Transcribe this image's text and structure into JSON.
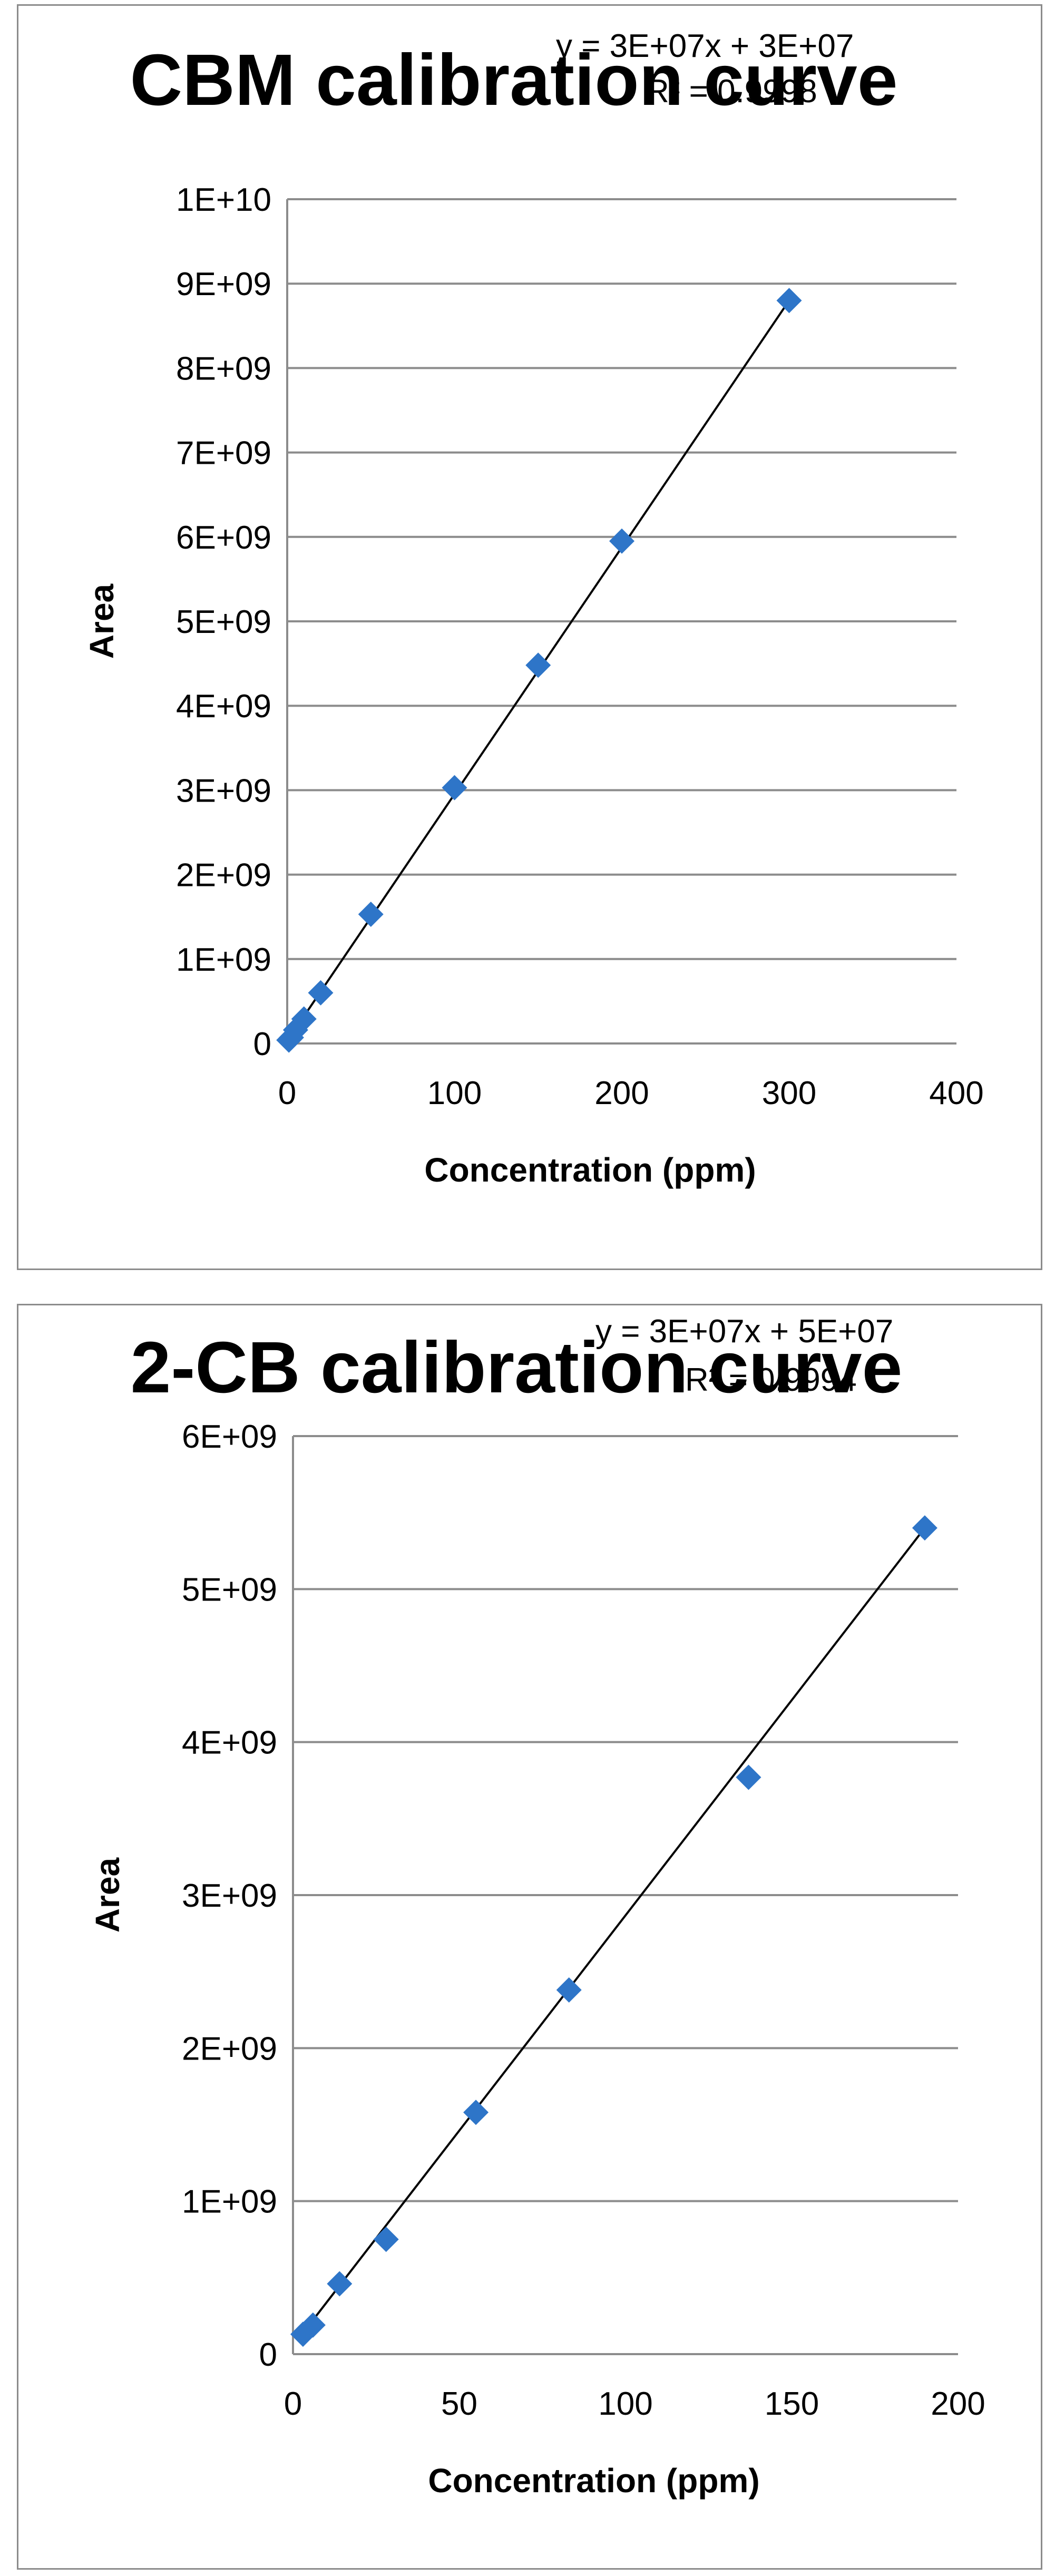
{
  "chart_data": [
    {
      "type": "scatter",
      "title": "CBM calibration curve",
      "xlabel": "Concentration (ppm)",
      "ylabel": "Area",
      "xlim": [
        0,
        400
      ],
      "ylim": [
        0,
        10000000000
      ],
      "x_ticks": [
        "0",
        "100",
        "200",
        "300",
        "400"
      ],
      "y_ticks": [
        "0",
        "1E+09",
        "2E+09",
        "3E+09",
        "4E+09",
        "5E+09",
        "6E+09",
        "7E+09",
        "8E+09",
        "9E+09",
        "1E+10"
      ],
      "grid": "horizontal",
      "legend": "none",
      "equation": "y = 3E+07x + 3E+07",
      "r_squared": "R² = 0.9998",
      "marker_color": "#2E75C8",
      "line_color": "#000000",
      "series": [
        {
          "x": [
            1,
            2.5,
            5,
            10,
            20,
            50,
            100,
            150,
            200,
            300
          ],
          "y": [
            40000000,
            70000000,
            160000000,
            290000000,
            600000000,
            1530000000,
            3030000000,
            4480000000,
            5950000000,
            8800000000
          ]
        }
      ],
      "trendline": {
        "x": [
          0,
          300
        ],
        "y": [
          30000000,
          8800000000
        ]
      }
    },
    {
      "type": "scatter",
      "title": "2-CB calibration curve",
      "xlabel": "Concentration (ppm)",
      "ylabel": "Area",
      "xlim": [
        0,
        200
      ],
      "ylim": [
        0,
        6000000000
      ],
      "x_ticks": [
        "0",
        "50",
        "100",
        "150",
        "200"
      ],
      "y_ticks": [
        "0",
        "1E+09",
        "2E+09",
        "3E+09",
        "4E+09",
        "5E+09",
        "6E+09"
      ],
      "grid": "horizontal",
      "legend": "none",
      "equation": "y = 3E+07x + 5E+07",
      "r_squared": "R² = 0.9994",
      "marker_color": "#2E75C8",
      "line_color": "#000000",
      "series": [
        {
          "x": [
            3,
            6,
            14,
            28,
            55,
            83,
            137,
            190
          ],
          "y": [
            130000000,
            190000000,
            460000000,
            750000000,
            1580000000,
            2380000000,
            3770000000,
            5400000000
          ]
        }
      ],
      "trendline": {
        "x": [
          2,
          190
        ],
        "y": [
          110000000,
          5400000000
        ]
      }
    }
  ]
}
